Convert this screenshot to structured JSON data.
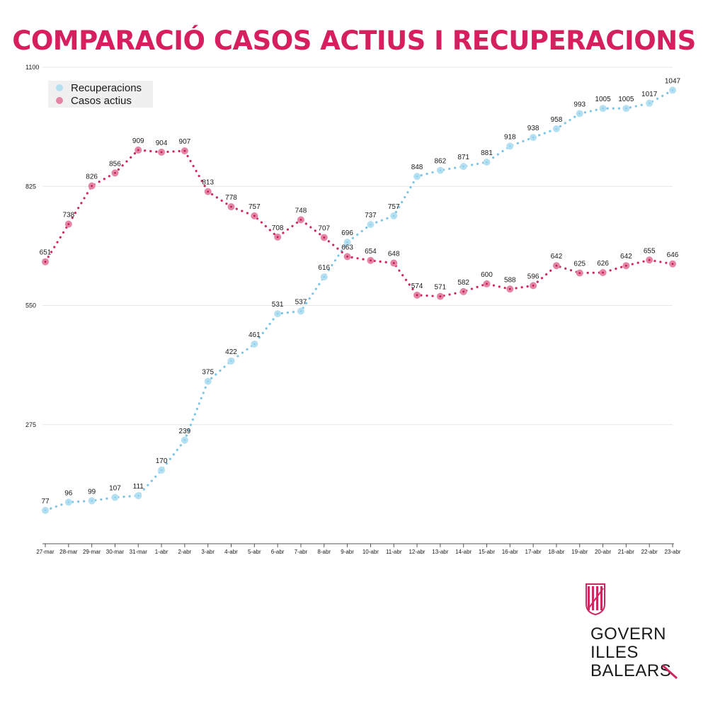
{
  "title": "COMPARACIÓ CASOS ACTIUS I RECUPERACIONS",
  "colors": {
    "title": "#d61f5f",
    "recuperacions": "#7cc4e4",
    "recuperacions_marker": "#b5e0f2",
    "casos_actius": "#cc2a5e",
    "casos_actius_marker": "#e585a6",
    "grid": "#e6e6e6",
    "axis": "#555555",
    "text": "#1a1a1a"
  },
  "chart_data": {
    "type": "line",
    "title": "COMPARACIÓ CASOS ACTIUS I RECUPERACIONS",
    "xlabel": "",
    "ylabel": "",
    "ylim": [
      0,
      1100
    ],
    "yticks": [
      "275",
      "550",
      "825",
      "1100"
    ],
    "grid": true,
    "legend": "top-left",
    "categories": [
      "27-mar",
      "28-mar",
      "29-mar",
      "30-mar",
      "31-mar",
      "1-abr",
      "2-abr",
      "3-abr",
      "4-abr",
      "5-abr",
      "6-abr",
      "7-abr",
      "8-abr",
      "9-abr",
      "10-abr",
      "11-abr",
      "12-abr",
      "13-abr",
      "14-abr",
      "15-abr",
      "16-abr",
      "17-abr",
      "18-abr",
      "19-abr",
      "20-abr",
      "21-abr",
      "22-abr",
      "23-abr"
    ],
    "series": [
      {
        "name": "Recuperacions",
        "values": [
          77,
          96,
          99,
          107,
          111,
          170,
          239,
          375,
          422,
          461,
          531,
          537,
          616,
          696,
          737,
          757,
          848,
          862,
          871,
          881,
          918,
          938,
          958,
          993,
          1005,
          1005,
          1017,
          1047
        ]
      },
      {
        "name": "Casos actius",
        "values": [
          651,
          738,
          826,
          856,
          909,
          904,
          907,
          813,
          778,
          757,
          708,
          748,
          707,
          663,
          654,
          648,
          574,
          571,
          582,
          600,
          588,
          596,
          642,
          625,
          626,
          642,
          655,
          646
        ]
      }
    ]
  },
  "logo": {
    "line1": "GOVERN",
    "line2": "ILLES",
    "line3": "BALEARS"
  }
}
